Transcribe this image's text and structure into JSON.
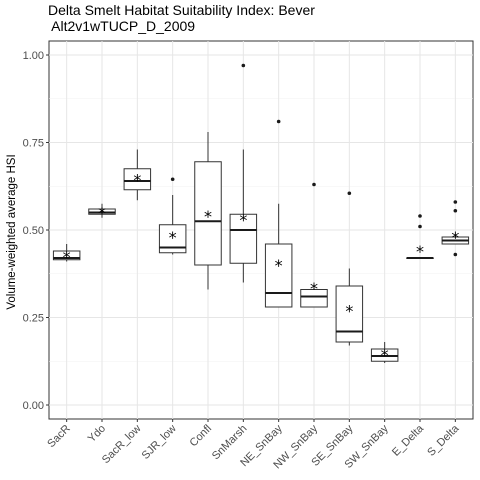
{
  "chart_data": {
    "type": "box",
    "title_line1": "Delta Smelt Habitat Suitability Index: Bever",
    "title_line2": " Alt2v1wTUCP_D_2009",
    "ylabel": "Volume-weighted average HSI",
    "ylim": [
      -0.04,
      1.04
    ],
    "yticks": [
      0.0,
      0.25,
      0.5,
      0.75,
      1.0
    ],
    "ytick_labels": [
      "0.00",
      "0.25",
      "0.50",
      "0.75",
      "1.00"
    ],
    "categories": [
      "SacR",
      "Ydo",
      "SacR_low",
      "SJR_low",
      "Confl",
      "SnMarsh",
      "NE_SnBay",
      "NW_SnBay",
      "SE_SnBay",
      "SW_SnBay",
      "E_Delta",
      "S_Delta"
    ],
    "boxes": [
      {
        "min": 0.41,
        "q1": 0.415,
        "median": 0.42,
        "q3": 0.44,
        "max": 0.46,
        "mean": 0.425,
        "outliers": []
      },
      {
        "min": 0.535,
        "q1": 0.545,
        "median": 0.55,
        "q3": 0.56,
        "max": 0.575,
        "mean": 0.55,
        "outliers": []
      },
      {
        "min": 0.585,
        "q1": 0.615,
        "median": 0.64,
        "q3": 0.675,
        "max": 0.73,
        "mean": 0.645,
        "outliers": []
      },
      {
        "min": 0.43,
        "q1": 0.435,
        "median": 0.45,
        "q3": 0.515,
        "max": 0.6,
        "mean": 0.48,
        "outliers": [
          0.645
        ]
      },
      {
        "min": 0.33,
        "q1": 0.4,
        "median": 0.525,
        "q3": 0.695,
        "max": 0.78,
        "mean": 0.54,
        "outliers": []
      },
      {
        "min": 0.35,
        "q1": 0.405,
        "median": 0.5,
        "q3": 0.545,
        "max": 0.73,
        "mean": 0.53,
        "outliers": [
          0.97
        ]
      },
      {
        "min": 0.28,
        "q1": 0.28,
        "median": 0.32,
        "q3": 0.46,
        "max": 0.575,
        "mean": 0.4,
        "outliers": [
          0.81
        ]
      },
      {
        "min": 0.28,
        "q1": 0.28,
        "median": 0.31,
        "q3": 0.33,
        "max": 0.335,
        "mean": 0.335,
        "outliers": [
          0.63
        ]
      },
      {
        "min": 0.17,
        "q1": 0.18,
        "median": 0.21,
        "q3": 0.34,
        "max": 0.39,
        "mean": 0.27,
        "outliers": [
          0.605
        ]
      },
      {
        "min": 0.12,
        "q1": 0.125,
        "median": 0.14,
        "q3": 0.16,
        "max": 0.18,
        "mean": 0.145,
        "outliers": []
      },
      {
        "min": 0.42,
        "q1": 0.42,
        "median": 0.42,
        "q3": 0.42,
        "max": 0.42,
        "mean": 0.44,
        "outliers": [
          0.51,
          0.54
        ]
      },
      {
        "min": 0.46,
        "q1": 0.46,
        "median": 0.47,
        "q3": 0.48,
        "max": 0.485,
        "mean": 0.48,
        "outliers": [
          0.43,
          0.555,
          0.58
        ]
      }
    ],
    "mean_marker": "*",
    "grid": true,
    "legend": "none"
  }
}
